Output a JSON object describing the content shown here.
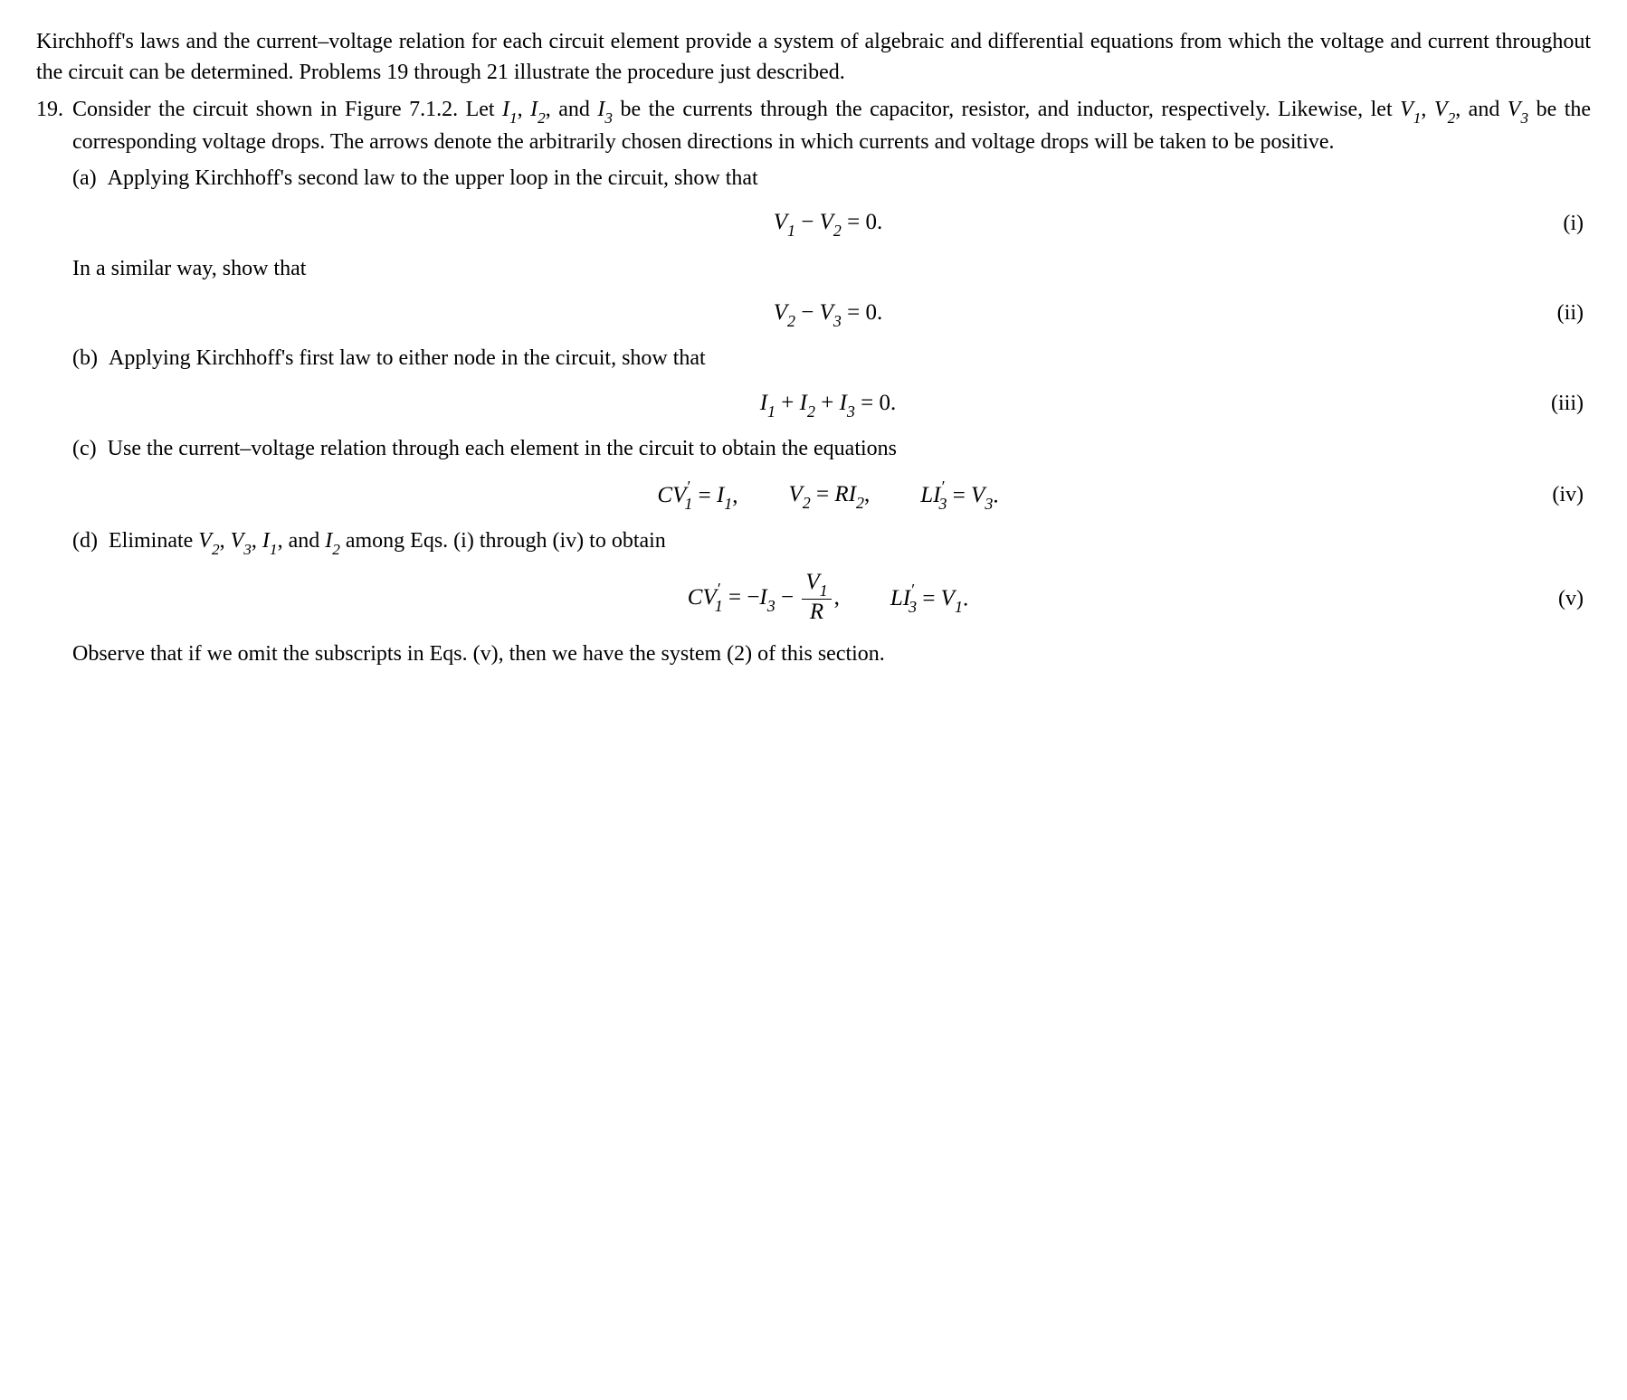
{
  "intro": "Kirchhoff's laws and the current–voltage relation for each circuit element provide a system of algebraic and differential equations from which the voltage and current throughout the circuit can be determined. Problems 19 through 21 illustrate the procedure just described.",
  "problem_number": "19.",
  "p19_lead_a": "Consider the circuit shown in Figure 7.1.2.  Let ",
  "p19_lead_b": ", and ",
  "p19_lead_c": " be the currents through the capacitor, resistor, and inductor, respectively.  Likewise, let ",
  "p19_lead_d": ", and ",
  "p19_lead_e": " be the corresponding voltage drops. The arrows denote the arbitrarily chosen directions in which currents and voltage drops will be taken to be positive.",
  "labels": {
    "a": "(a)",
    "b": "(b)",
    "c": "(c)",
    "d": "(d)"
  },
  "a_text": "Applying Kirchhoff's second law to the upper loop in the circuit, show that",
  "a_mid": "In a similar way, show that",
  "b_text": "Applying Kirchhoff's first law to either node in the circuit, show that",
  "c_text": "Use the current–voltage relation through each element in the circuit to obtain the equations",
  "d_text_a": "Eliminate ",
  "d_text_b": ", and ",
  "d_text_c": " among Eqs. (i) through (iv) to obtain",
  "tags": {
    "i": "(i)",
    "ii": "(ii)",
    "iii": "(iii)",
    "iv": "(iv)",
    "v": "(v)"
  },
  "sym": {
    "I": "I",
    "V": "V",
    "C": "C",
    "R": "R",
    "L": "L",
    "s1": "1",
    "s2": "2",
    "s3": "3",
    "prime": "′",
    "comma_sp": ", ",
    "minus": " − ",
    "plus": " + ",
    "eq0": " = 0.",
    "eq": " = ",
    "neg": "−",
    "period": ".",
    "comma": ","
  },
  "closing": "Observe that if we omit the subscripts in Eqs. (v), then we have the system (2) of this section."
}
